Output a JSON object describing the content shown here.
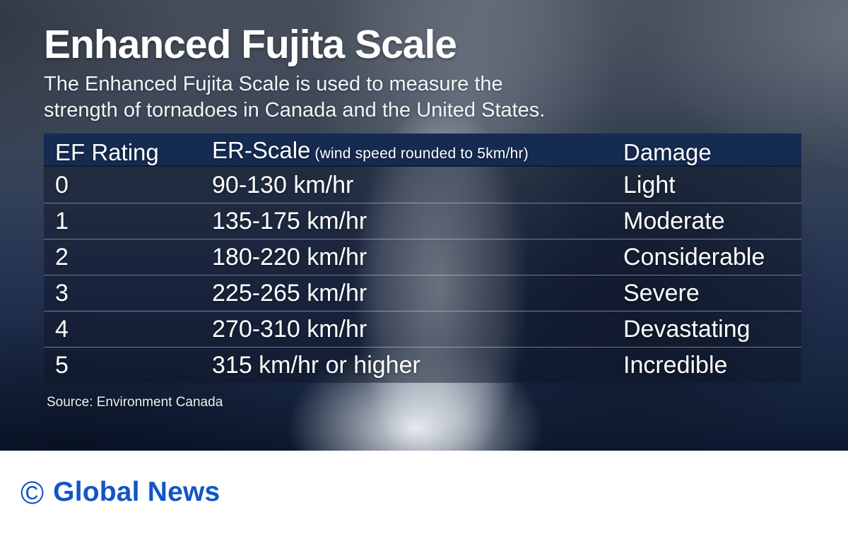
{
  "title": "Enhanced Fujita Scale",
  "subtitle": {
    "line1": "The Enhanced Fujita Scale is used to measure the",
    "line2": "strength of tornadoes in Canada and the United States."
  },
  "table": {
    "header": {
      "ef": "EF Rating",
      "scale": "ER-Scale",
      "scale_note": "(wind speed rounded to 5km/hr)",
      "damage": "Damage"
    },
    "rows": [
      {
        "ef": "0",
        "speed": "90-130 km/hr",
        "damage": "Light"
      },
      {
        "ef": "1",
        "speed": "135-175 km/hr",
        "damage": "Moderate"
      },
      {
        "ef": "2",
        "speed": "180-220 km/hr",
        "damage": "Considerable"
      },
      {
        "ef": "3",
        "speed": "225-265 km/hr",
        "damage": "Severe"
      },
      {
        "ef": "4",
        "speed": "270-310 km/hr",
        "damage": "Devastating"
      },
      {
        "ef": "5",
        "speed": "315 km/hr or higher",
        "damage": "Incredible"
      }
    ]
  },
  "source": "Source: Environment Canada",
  "footer": {
    "copyright_symbol": "©",
    "brand": "Global News"
  },
  "colors": {
    "header_bg": "#152b52",
    "row_overlay": "rgba(14,22,40,0.50)",
    "brand_blue": "#1155c8",
    "footer_bg": "#ffffff",
    "text": "#ffffff"
  },
  "chart_data": {
    "type": "table",
    "title": "Enhanced Fujita Scale",
    "subtitle": "The Enhanced Fujita Scale is used to measure the strength of tornadoes in Canada and the United States.",
    "columns": [
      "EF Rating",
      "ER-Scale (wind speed rounded to 5km/hr)",
      "Damage"
    ],
    "rows": [
      [
        "0",
        "90-130 km/hr",
        "Light"
      ],
      [
        "1",
        "135-175 km/hr",
        "Moderate"
      ],
      [
        "2",
        "180-220 km/hr",
        "Considerable"
      ],
      [
        "3",
        "225-265 km/hr",
        "Severe"
      ],
      [
        "4",
        "270-310 km/hr",
        "Devastating"
      ],
      [
        "5",
        "315 km/hr or higher",
        "Incredible"
      ]
    ],
    "source": "Source: Environment Canada"
  }
}
